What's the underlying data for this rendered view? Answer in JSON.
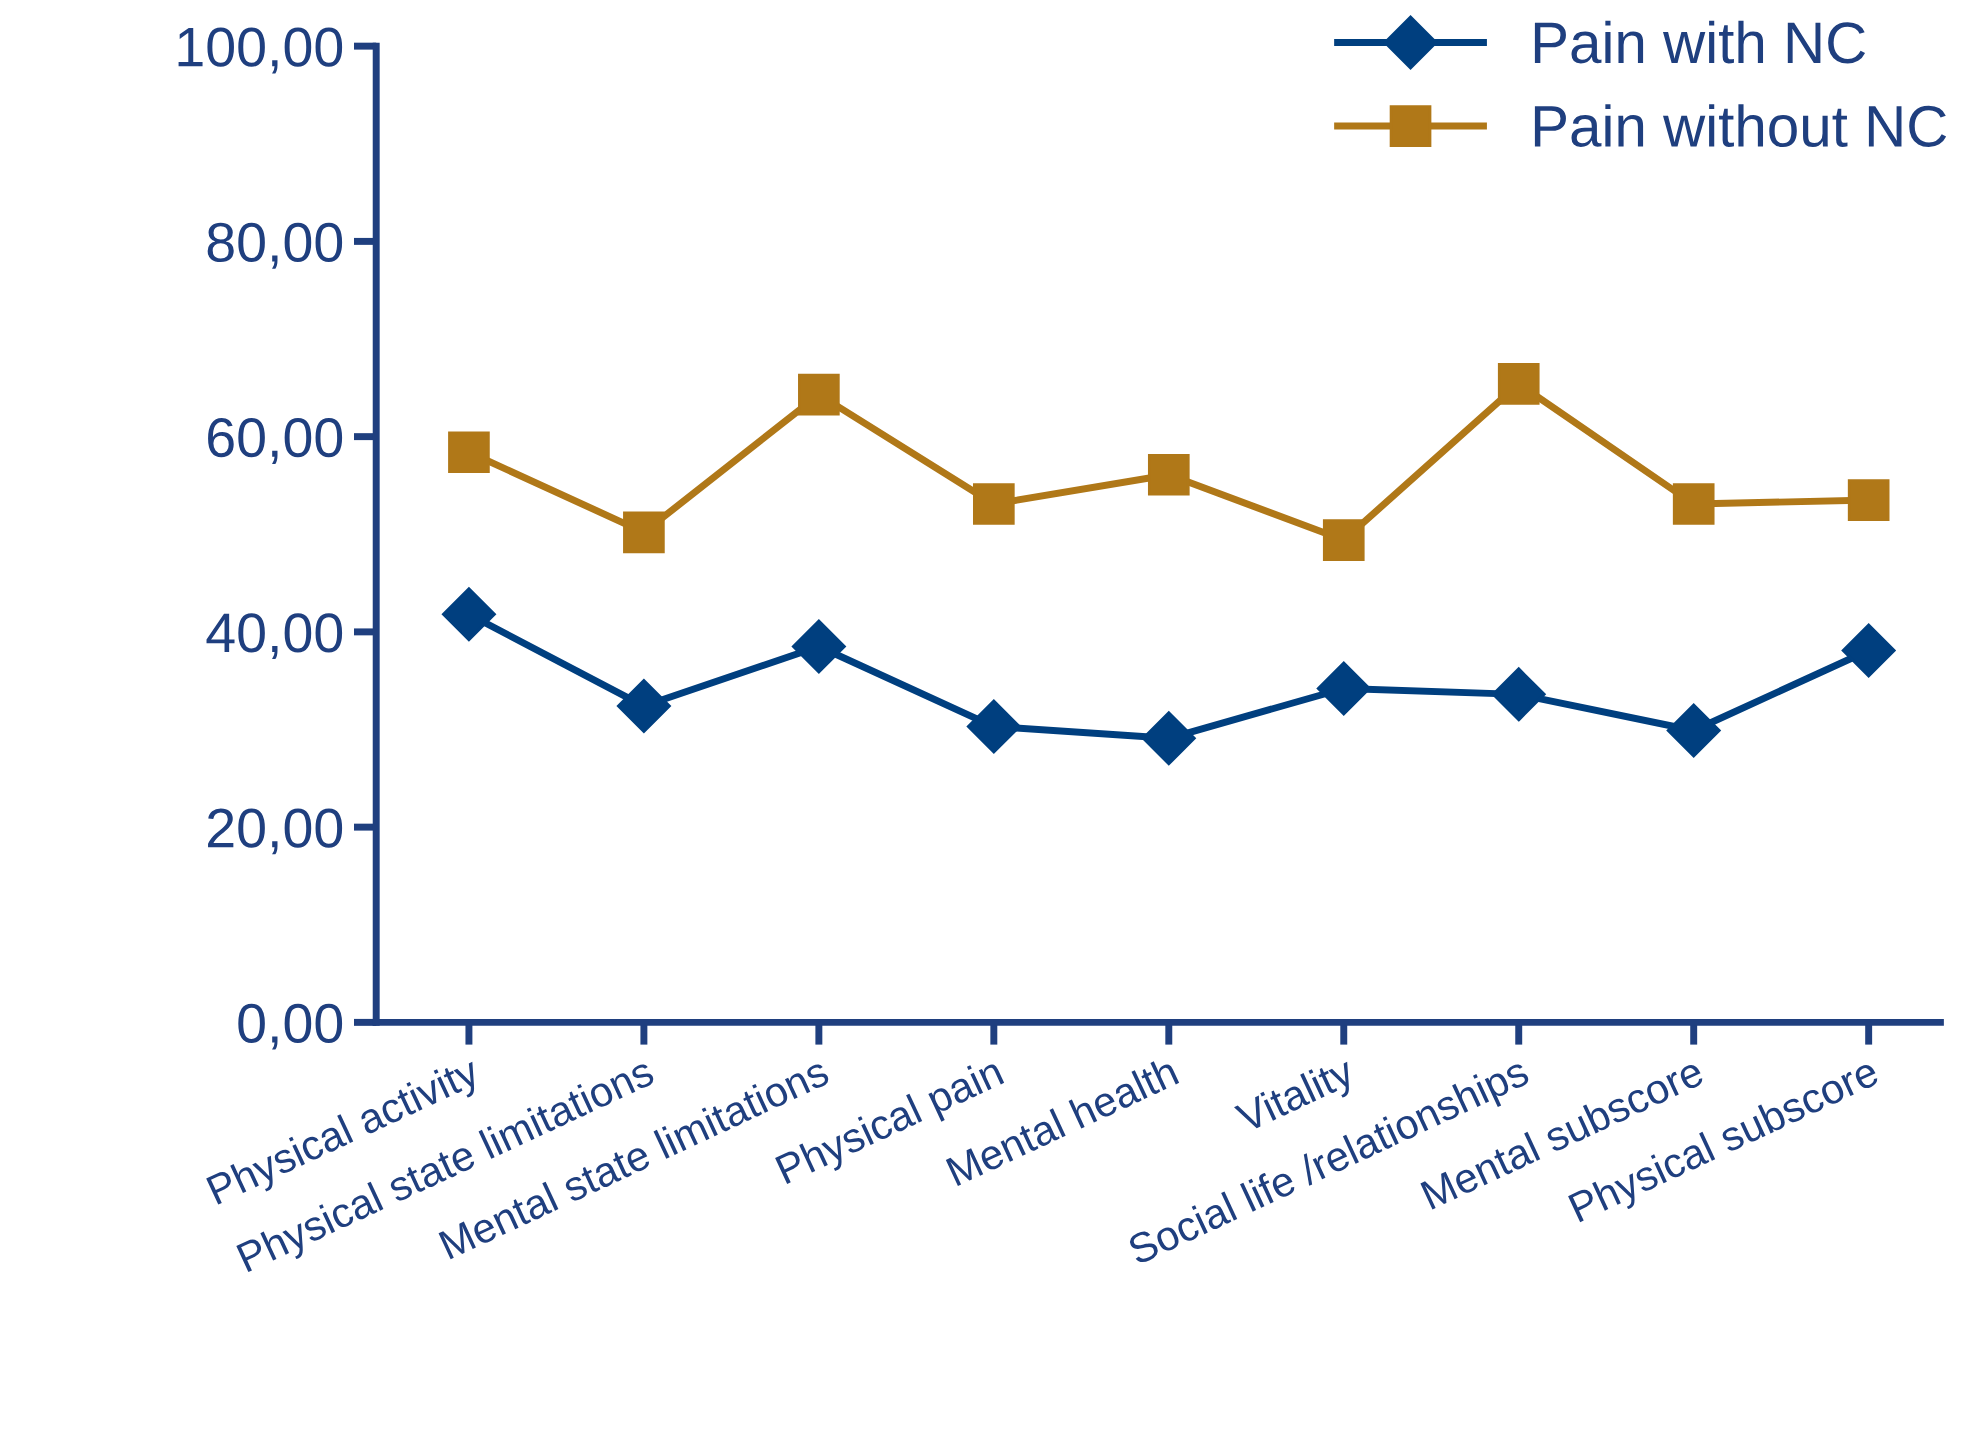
{
  "chart_data": {
    "type": "line",
    "categories": [
      "Physical activity",
      "Physical state limitations",
      "Mental state limitations",
      "Physical pain",
      "Mental health",
      "Vitality",
      "Social life /relationships",
      "Mental subscore",
      "Physical subscore"
    ],
    "series": [
      {
        "name": "Pain with NC",
        "color": "#003f7f",
        "marker": "diamond",
        "values": [
          41.8,
          32.4,
          38.5,
          30.3,
          29.1,
          34.2,
          33.6,
          29.9,
          38.1
        ]
      },
      {
        "name": "Pain without NC",
        "color": "#b07818",
        "marker": "square",
        "values": [
          58.4,
          50.2,
          64.3,
          53.1,
          56.1,
          49.4,
          65.4,
          53.1,
          53.5
        ]
      }
    ],
    "ylim": [
      0,
      100
    ],
    "yticks": [
      {
        "value": 0,
        "label": "0,00"
      },
      {
        "value": 20,
        "label": "20,00"
      },
      {
        "value": 40,
        "label": "40,00"
      },
      {
        "value": 60,
        "label": "60,00"
      },
      {
        "value": 80,
        "label": "80,00"
      },
      {
        "value": 100,
        "label": "100,00"
      }
    ],
    "grid": false,
    "legend": "top right",
    "line_style": "solid"
  }
}
